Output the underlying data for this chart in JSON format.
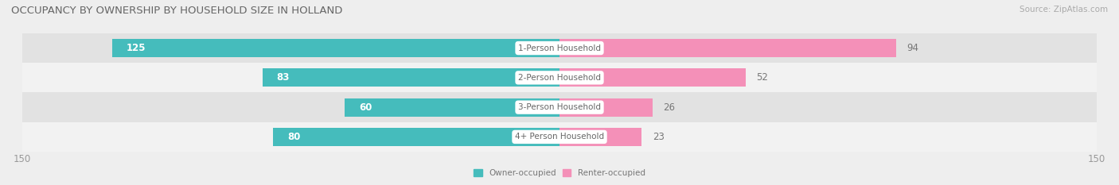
{
  "title": "OCCUPANCY BY OWNERSHIP BY HOUSEHOLD SIZE IN HOLLAND",
  "source": "Source: ZipAtlas.com",
  "categories": [
    "1-Person Household",
    "2-Person Household",
    "3-Person Household",
    "4+ Person Household"
  ],
  "owner_values": [
    125,
    83,
    60,
    80
  ],
  "renter_values": [
    94,
    52,
    26,
    23
  ],
  "owner_color": "#45bcbc",
  "renter_color": "#f490b8",
  "axis_max": 150,
  "bar_height": 0.62,
  "bg_color": "#eeeeee",
  "row_bg_even": "#e2e2e2",
  "row_bg_odd": "#f2f2f2",
  "title_fontsize": 9.5,
  "source_fontsize": 7.5,
  "bar_label_fontsize": 8.5,
  "cat_label_fontsize": 7.5,
  "tick_fontsize": 8.5
}
